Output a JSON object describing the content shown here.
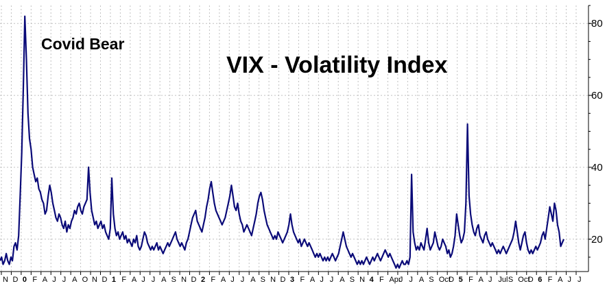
{
  "chart_data": {
    "type": "line",
    "title": "VIX - Volatility Index",
    "annotation": "Covid Bear",
    "xlabel": "",
    "ylabel": "",
    "ylim": [
      11,
      85
    ],
    "y_ticks": [
      20,
      40,
      60,
      80
    ],
    "y_axis_position": "right",
    "grid": true,
    "line_color": "#0a0a78",
    "x_tick_labels": [
      {
        "label": "N",
        "bold": false
      },
      {
        "label": "D",
        "bold": false
      },
      {
        "label": "0",
        "bold": true
      },
      {
        "label": "F",
        "bold": false
      },
      {
        "label": "A",
        "bold": false
      },
      {
        "label": "J",
        "bold": false
      },
      {
        "label": "J",
        "bold": false
      },
      {
        "label": "A",
        "bold": false
      },
      {
        "label": "O",
        "bold": false
      },
      {
        "label": "N",
        "bold": false
      },
      {
        "label": "D",
        "bold": false
      },
      {
        "label": "1",
        "bold": true
      },
      {
        "label": "F",
        "bold": false
      },
      {
        "label": "A",
        "bold": false
      },
      {
        "label": "J",
        "bold": false
      },
      {
        "label": "J",
        "bold": false
      },
      {
        "label": "A",
        "bold": false
      },
      {
        "label": "S",
        "bold": false
      },
      {
        "label": "N",
        "bold": false
      },
      {
        "label": "D",
        "bold": false
      },
      {
        "label": "2",
        "bold": true
      },
      {
        "label": "F",
        "bold": false
      },
      {
        "label": "A",
        "bold": false
      },
      {
        "label": "J",
        "bold": false
      },
      {
        "label": "J",
        "bold": false
      },
      {
        "label": "A",
        "bold": false
      },
      {
        "label": "S",
        "bold": false
      },
      {
        "label": "N",
        "bold": false
      },
      {
        "label": "D",
        "bold": false
      },
      {
        "label": "3",
        "bold": true
      },
      {
        "label": "F",
        "bold": false
      },
      {
        "label": "A",
        "bold": false
      },
      {
        "label": "J",
        "bold": false
      },
      {
        "label": "J",
        "bold": false
      },
      {
        "label": "A",
        "bold": false
      },
      {
        "label": "S",
        "bold": false
      },
      {
        "label": "N",
        "bold": false
      },
      {
        "label": "4",
        "bold": true
      },
      {
        "label": "F",
        "bold": false
      },
      {
        "label": "Apr",
        "bold": false
      },
      {
        "label": "J",
        "bold": false
      },
      {
        "label": "J",
        "bold": false
      },
      {
        "label": "A",
        "bold": false
      },
      {
        "label": "S",
        "bold": false
      },
      {
        "label": "Oct",
        "bold": false
      },
      {
        "label": "D",
        "bold": false
      },
      {
        "label": "5",
        "bold": true
      },
      {
        "label": "F",
        "bold": false
      },
      {
        "label": "A",
        "bold": false
      },
      {
        "label": "J",
        "bold": false
      },
      {
        "label": "Jul",
        "bold": false
      },
      {
        "label": "S",
        "bold": false
      },
      {
        "label": "Oct",
        "bold": false
      },
      {
        "label": "D",
        "bold": false
      },
      {
        "label": "6",
        "bold": true
      },
      {
        "label": "F",
        "bold": false
      },
      {
        "label": "A",
        "bold": false
      },
      {
        "label": "J",
        "bold": false
      },
      {
        "label": "J",
        "bold": false
      }
    ],
    "series": [
      {
        "values": [
          14,
          15,
          13,
          14,
          16,
          14,
          13,
          15,
          14,
          18,
          19,
          17,
          21,
          32,
          44,
          62,
          82,
          70,
          55,
          48,
          45,
          40,
          38,
          36,
          37,
          34,
          33,
          31,
          30,
          27,
          28,
          32,
          35,
          33,
          30,
          28,
          26,
          25,
          27,
          26,
          24,
          23,
          25,
          22,
          24,
          23,
          25,
          26,
          28,
          27,
          29,
          30,
          28,
          27,
          29,
          30,
          31,
          40,
          33,
          28,
          26,
          24,
          25,
          23,
          24,
          25,
          23,
          24,
          22,
          21,
          20,
          23,
          37,
          27,
          23,
          21,
          22,
          20,
          21,
          22,
          20,
          21,
          19,
          20,
          19,
          18,
          20,
          19,
          21,
          18,
          17,
          18,
          20,
          22,
          21,
          19,
          18,
          17,
          18,
          17,
          18,
          19,
          17,
          18,
          17,
          16,
          17,
          18,
          19,
          18,
          19,
          20,
          21,
          22,
          20,
          19,
          18,
          19,
          18,
          17,
          19,
          20,
          22,
          24,
          26,
          27,
          28,
          25,
          24,
          23,
          22,
          24,
          26,
          29,
          31,
          34,
          36,
          33,
          30,
          28,
          27,
          26,
          25,
          24,
          25,
          26,
          28,
          30,
          32,
          35,
          32,
          29,
          28,
          30,
          27,
          25,
          24,
          22,
          23,
          24,
          23,
          22,
          21,
          23,
          25,
          27,
          30,
          32,
          33,
          31,
          28,
          26,
          24,
          23,
          22,
          21,
          20,
          21,
          20,
          22,
          21,
          20,
          19,
          20,
          21,
          22,
          24,
          27,
          24,
          22,
          21,
          20,
          19,
          20,
          18,
          19,
          20,
          19,
          18,
          19,
          18,
          17,
          16,
          15,
          16,
          15,
          16,
          15,
          14,
          15,
          14,
          15,
          14,
          15,
          16,
          15,
          14,
          15,
          16,
          18,
          20,
          22,
          20,
          18,
          17,
          16,
          15,
          16,
          15,
          14,
          13,
          14,
          13,
          14,
          13,
          14,
          15,
          14,
          13,
          14,
          15,
          14,
          15,
          16,
          15,
          14,
          15,
          16,
          17,
          16,
          15,
          16,
          15,
          14,
          13,
          12,
          13,
          12,
          13,
          14,
          13,
          13,
          14,
          13,
          15,
          38,
          22,
          19,
          17,
          18,
          17,
          19,
          18,
          17,
          20,
          23,
          19,
          17,
          18,
          19,
          22,
          20,
          18,
          17,
          18,
          20,
          19,
          18,
          16,
          17,
          15,
          16,
          18,
          21,
          27,
          24,
          21,
          19,
          20,
          22,
          30,
          52,
          32,
          27,
          24,
          22,
          21,
          23,
          24,
          21,
          20,
          19,
          21,
          22,
          20,
          19,
          18,
          19,
          18,
          17,
          16,
          17,
          16,
          17,
          18,
          17,
          16,
          17,
          18,
          19,
          20,
          22,
          25,
          22,
          19,
          17,
          19,
          21,
          22,
          19,
          17,
          16,
          17,
          16,
          17,
          18,
          17,
          18,
          19,
          21,
          22,
          20,
          23,
          26,
          29,
          27,
          25,
          30,
          28,
          24,
          22,
          18,
          19,
          20
        ]
      }
    ]
  }
}
